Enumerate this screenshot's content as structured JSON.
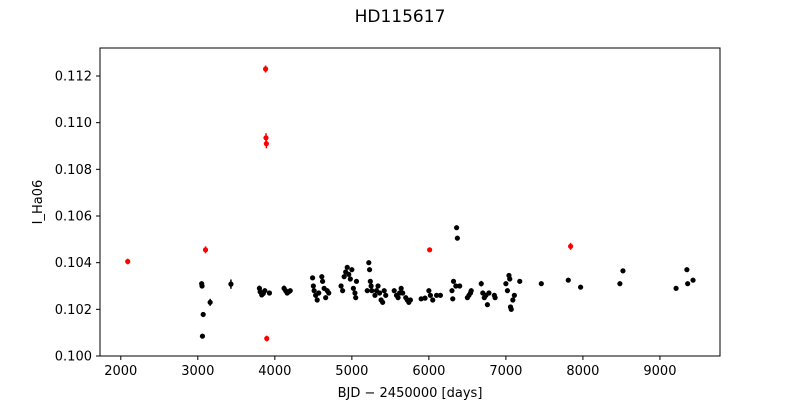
{
  "chart_data": {
    "type": "scatter",
    "title": "HD115617",
    "xlabel": "BJD − 2450000 [days]",
    "ylabel": "I_Ha06",
    "xlim": [
      1730,
      9780
    ],
    "ylim": [
      0.1,
      0.1132
    ],
    "xticks": [
      2000,
      3000,
      4000,
      5000,
      6000,
      7000,
      8000,
      9000
    ],
    "xtick_labels": [
      "2000",
      "3000",
      "4000",
      "5000",
      "6000",
      "7000",
      "8000",
      "9000"
    ],
    "yticks": [
      0.1,
      0.102,
      0.104,
      0.106,
      0.108,
      0.11,
      0.112
    ],
    "ytick_labels": [
      "0.100",
      "0.102",
      "0.104",
      "0.106",
      "0.108",
      "0.110",
      "0.112"
    ],
    "grid": false,
    "colors": {
      "inlier": "#000000",
      "outlier": "#ff0000"
    },
    "series": [
      {
        "color": "#000000",
        "points": [
          [
            3050,
            0.1031,
            0.0001
          ],
          [
            3055,
            0.103,
            0.0001
          ],
          [
            3060,
            0.10085,
            0.0001
          ],
          [
            3070,
            0.10178,
            0.0001
          ],
          [
            3160,
            0.1023,
            0.00015
          ],
          [
            3430,
            0.10308,
            0.0002
          ],
          [
            3800,
            0.1029,
            0.00012
          ],
          [
            3810,
            0.10275,
            0.0001
          ],
          [
            3830,
            0.10262,
            0.0001
          ],
          [
            3850,
            0.10268,
            0.0001
          ],
          [
            3870,
            0.1028,
            0.0001
          ],
          [
            3930,
            0.1027,
            0.0001
          ],
          [
            4120,
            0.1029,
            0.00012
          ],
          [
            4140,
            0.1028,
            0.0001
          ],
          [
            4160,
            0.1027,
            0.0001
          ],
          [
            4180,
            0.10275,
            0.0001
          ],
          [
            4200,
            0.1028,
            0.0001
          ],
          [
            4490,
            0.10335,
            0.0001
          ],
          [
            4500,
            0.103,
            0.0001
          ],
          [
            4510,
            0.1028,
            0.0001
          ],
          [
            4530,
            0.1026,
            0.0001
          ],
          [
            4550,
            0.1024,
            0.0001
          ],
          [
            4570,
            0.1027,
            0.0001
          ],
          [
            4610,
            0.1034,
            0.0001
          ],
          [
            4620,
            0.1032,
            0.0001
          ],
          [
            4640,
            0.1029,
            0.0001
          ],
          [
            4660,
            0.1025,
            0.0001
          ],
          [
            4680,
            0.1028,
            0.0001
          ],
          [
            4700,
            0.1027,
            0.0001
          ],
          [
            4860,
            0.103,
            0.0001
          ],
          [
            4880,
            0.1028,
            0.0001
          ],
          [
            4900,
            0.1034,
            0.0001
          ],
          [
            4920,
            0.1036,
            0.0001
          ],
          [
            4940,
            0.1038,
            0.0001
          ],
          [
            4960,
            0.1035,
            0.0001
          ],
          [
            4980,
            0.1033,
            0.0001
          ],
          [
            5000,
            0.1037,
            0.0001
          ],
          [
            5020,
            0.1029,
            0.0001
          ],
          [
            5040,
            0.1027,
            0.0001
          ],
          [
            5050,
            0.1025,
            0.0001
          ],
          [
            5060,
            0.1032,
            0.0001
          ],
          [
            5200,
            0.1028,
            0.0001
          ],
          [
            5220,
            0.104,
            0.0001
          ],
          [
            5230,
            0.1037,
            0.0001
          ],
          [
            5240,
            0.1032,
            0.0001
          ],
          [
            5250,
            0.103,
            0.0001
          ],
          [
            5260,
            0.1028,
            0.0001
          ],
          [
            5300,
            0.1026,
            0.0001
          ],
          [
            5320,
            0.1028,
            0.0001
          ],
          [
            5340,
            0.103,
            0.0001
          ],
          [
            5360,
            0.1027,
            0.0001
          ],
          [
            5380,
            0.1024,
            0.0001
          ],
          [
            5400,
            0.1023,
            0.0001
          ],
          [
            5420,
            0.1028,
            0.0001
          ],
          [
            5440,
            0.1026,
            0.0001
          ],
          [
            5550,
            0.1028,
            0.0001
          ],
          [
            5580,
            0.1026,
            0.0001
          ],
          [
            5600,
            0.1025,
            0.0001
          ],
          [
            5620,
            0.1027,
            0.0001
          ],
          [
            5640,
            0.1029,
            0.0001
          ],
          [
            5660,
            0.1027,
            0.0001
          ],
          [
            5700,
            0.1025,
            0.0001
          ],
          [
            5720,
            0.1024,
            0.0001
          ],
          [
            5740,
            0.1023,
            0.0001
          ],
          [
            5760,
            0.1024,
            0.0001
          ],
          [
            5900,
            0.10245,
            0.0001
          ],
          [
            5950,
            0.10248,
            0.0001
          ],
          [
            6000,
            0.1028,
            0.0001
          ],
          [
            6020,
            0.1026,
            0.0001
          ],
          [
            6050,
            0.1024,
            0.0001
          ],
          [
            6100,
            0.1026,
            0.0001
          ],
          [
            6150,
            0.1026,
            0.0001
          ],
          [
            6300,
            0.1028,
            0.0001
          ],
          [
            6310,
            0.10245,
            0.0001
          ],
          [
            6320,
            0.1032,
            0.0001
          ],
          [
            6350,
            0.103,
            0.0001
          ],
          [
            6360,
            0.1055,
            0.0001
          ],
          [
            6370,
            0.10505,
            0.0001
          ],
          [
            6400,
            0.103,
            0.0001
          ],
          [
            6500,
            0.1025,
            0.0001
          ],
          [
            6520,
            0.1026,
            0.0001
          ],
          [
            6540,
            0.1027,
            0.0001
          ],
          [
            6550,
            0.1028,
            0.0001
          ],
          [
            6680,
            0.1031,
            0.00012
          ],
          [
            6700,
            0.1027,
            0.0001
          ],
          [
            6720,
            0.1025,
            0.0001
          ],
          [
            6740,
            0.1026,
            0.0001
          ],
          [
            6760,
            0.1022,
            0.0001
          ],
          [
            6780,
            0.1027,
            0.0001
          ],
          [
            6850,
            0.1026,
            0.0001
          ],
          [
            6860,
            0.1025,
            0.0001
          ],
          [
            7000,
            0.1031,
            0.0001
          ],
          [
            7020,
            0.1028,
            0.0001
          ],
          [
            7040,
            0.10345,
            0.0001
          ],
          [
            7050,
            0.1033,
            0.0001
          ],
          [
            7060,
            0.1021,
            0.0001
          ],
          [
            7070,
            0.102,
            0.0001
          ],
          [
            7090,
            0.1024,
            0.0001
          ],
          [
            7110,
            0.1026,
            0.0001
          ],
          [
            7180,
            0.1032,
            0.0001
          ],
          [
            7460,
            0.1031,
            0.0001
          ],
          [
            7810,
            0.10325,
            0.0001
          ],
          [
            7970,
            0.10295,
            0.0001
          ],
          [
            8480,
            0.1031,
            0.0001
          ],
          [
            8520,
            0.10365,
            0.0001
          ],
          [
            9210,
            0.1029,
            0.0001
          ],
          [
            9350,
            0.1037,
            0.0001
          ],
          [
            9360,
            0.1031,
            0.0001
          ],
          [
            9430,
            0.10325,
            0.0001
          ]
        ]
      },
      {
        "color": "#ff0000",
        "points": [
          [
            2090,
            0.10405,
            0.00012
          ],
          [
            3100,
            0.10455,
            0.00015
          ],
          [
            3880,
            0.1123,
            0.00015
          ],
          [
            3885,
            0.10935,
            0.0002
          ],
          [
            3890,
            0.1091,
            0.0002
          ],
          [
            3895,
            0.10075,
            0.00012
          ],
          [
            6010,
            0.10455,
            0.0001
          ],
          [
            7840,
            0.1047,
            0.00015
          ]
        ]
      }
    ]
  }
}
